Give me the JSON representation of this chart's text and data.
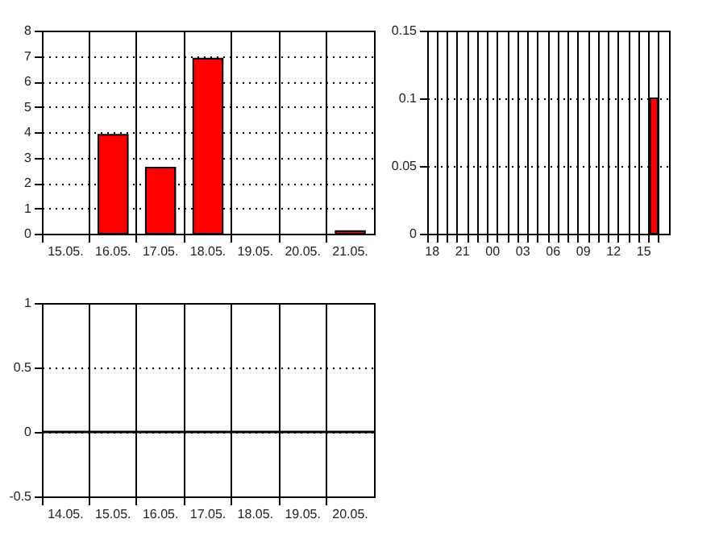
{
  "chart_data": [
    {
      "type": "bar",
      "categories": [
        "15.05.",
        "16.05.",
        "17.05.",
        "18.05.",
        "19.05.",
        "20.05.",
        "21.05."
      ],
      "values": [
        null,
        3.9,
        2.6,
        6.9,
        null,
        null,
        0.1
      ],
      "color": "#ff0000",
      "ylim": [
        0,
        8
      ],
      "yticks": [
        0,
        1,
        2,
        3,
        4,
        5,
        6,
        7,
        8
      ],
      "grid": true
    },
    {
      "type": "bar",
      "categories": [
        "18",
        null,
        null,
        "21",
        null,
        null,
        "00",
        null,
        null,
        "03",
        null,
        null,
        "06",
        null,
        null,
        "09",
        null,
        null,
        "12",
        null,
        null,
        "15",
        null,
        null
      ],
      "values": [
        null,
        null,
        null,
        null,
        null,
        null,
        null,
        null,
        null,
        null,
        null,
        null,
        null,
        null,
        null,
        null,
        null,
        null,
        null,
        null,
        null,
        null,
        0.1,
        null
      ],
      "color": "#ff0000",
      "ylim": [
        0,
        0.15
      ],
      "yticks": [
        0,
        0.05,
        0.1,
        0.15
      ],
      "grid": true
    },
    {
      "type": "bar",
      "categories": [
        "14.05.",
        "15.05.",
        "16.05.",
        "17.05.",
        "18.05.",
        "19.05.",
        "20.05."
      ],
      "values": [
        null,
        null,
        null,
        null,
        null,
        null,
        null
      ],
      "color": "#ff0000",
      "ylim": [
        -0.5,
        1
      ],
      "yticks": [
        -0.5,
        0,
        0.5,
        1
      ],
      "grid": true,
      "ref_lines": [
        {
          "axis": "y",
          "value": 0
        }
      ]
    }
  ]
}
